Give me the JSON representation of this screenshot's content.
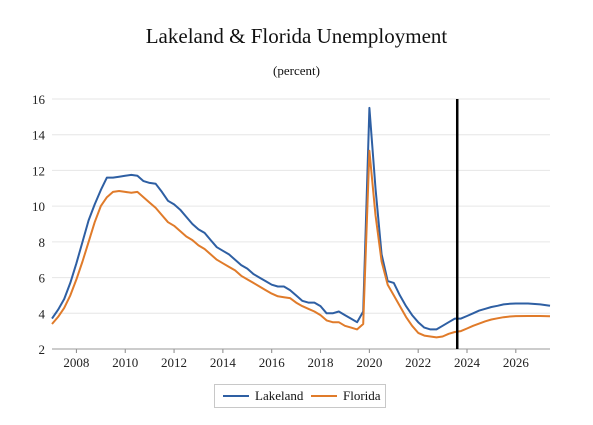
{
  "chart_data": {
    "type": "line",
    "title": "Lakeland & Florida Unemployment",
    "subtitle": "(percent)",
    "xlabel": "",
    "ylabel": "",
    "xlim": [
      2007.0,
      2027.4
    ],
    "ylim": [
      2,
      16
    ],
    "x_ticks": [
      "2008",
      "2010",
      "2012",
      "2014",
      "2016",
      "2018",
      "2020",
      "2022",
      "2024",
      "2026"
    ],
    "y_ticks": [
      "2",
      "4",
      "6",
      "8",
      "10",
      "12",
      "14",
      "16"
    ],
    "grid": "horizontal",
    "legend": "bottom",
    "vertical_marker_x": 2023.6,
    "series": [
      {
        "name": "Lakeland",
        "color": "#2e5fa3",
        "points": [
          [
            2007.0,
            3.7
          ],
          [
            2007.25,
            4.2
          ],
          [
            2007.5,
            4.8
          ],
          [
            2007.75,
            5.7
          ],
          [
            2008.0,
            6.8
          ],
          [
            2008.25,
            8.0
          ],
          [
            2008.5,
            9.2
          ],
          [
            2008.75,
            10.1
          ],
          [
            2009.0,
            10.9
          ],
          [
            2009.25,
            11.6
          ],
          [
            2009.5,
            11.6
          ],
          [
            2009.75,
            11.65
          ],
          [
            2010.0,
            11.7
          ],
          [
            2010.25,
            11.75
          ],
          [
            2010.5,
            11.7
          ],
          [
            2010.75,
            11.4
          ],
          [
            2011.0,
            11.3
          ],
          [
            2011.25,
            11.25
          ],
          [
            2011.5,
            10.8
          ],
          [
            2011.75,
            10.3
          ],
          [
            2012.0,
            10.1
          ],
          [
            2012.25,
            9.8
          ],
          [
            2012.5,
            9.4
          ],
          [
            2012.75,
            9.0
          ],
          [
            2013.0,
            8.7
          ],
          [
            2013.25,
            8.5
          ],
          [
            2013.5,
            8.1
          ],
          [
            2013.75,
            7.7
          ],
          [
            2014.0,
            7.5
          ],
          [
            2014.25,
            7.3
          ],
          [
            2014.5,
            7.0
          ],
          [
            2014.75,
            6.7
          ],
          [
            2015.0,
            6.5
          ],
          [
            2015.25,
            6.2
          ],
          [
            2015.5,
            6.0
          ],
          [
            2015.75,
            5.8
          ],
          [
            2016.0,
            5.6
          ],
          [
            2016.25,
            5.5
          ],
          [
            2016.5,
            5.5
          ],
          [
            2016.75,
            5.3
          ],
          [
            2017.0,
            5.0
          ],
          [
            2017.25,
            4.7
          ],
          [
            2017.5,
            4.6
          ],
          [
            2017.75,
            4.6
          ],
          [
            2018.0,
            4.4
          ],
          [
            2018.25,
            4.0
          ],
          [
            2018.5,
            4.0
          ],
          [
            2018.75,
            4.1
          ],
          [
            2019.0,
            3.9
          ],
          [
            2019.25,
            3.7
          ],
          [
            2019.5,
            3.5
          ],
          [
            2019.75,
            4.1
          ],
          [
            2020.0,
            15.5
          ],
          [
            2020.25,
            11.0
          ],
          [
            2020.5,
            7.3
          ],
          [
            2020.75,
            5.8
          ],
          [
            2021.0,
            5.7
          ],
          [
            2021.25,
            5.0
          ],
          [
            2021.5,
            4.4
          ],
          [
            2021.75,
            3.9
          ],
          [
            2022.0,
            3.5
          ],
          [
            2022.25,
            3.2
          ],
          [
            2022.5,
            3.1
          ],
          [
            2022.75,
            3.1
          ],
          [
            2023.0,
            3.3
          ],
          [
            2023.25,
            3.5
          ],
          [
            2023.5,
            3.7
          ],
          [
            2023.75,
            3.7
          ],
          [
            2024.0,
            3.85
          ],
          [
            2024.25,
            4.0
          ],
          [
            2024.5,
            4.15
          ],
          [
            2024.75,
            4.25
          ],
          [
            2025.0,
            4.35
          ],
          [
            2025.25,
            4.42
          ],
          [
            2025.5,
            4.5
          ],
          [
            2025.75,
            4.53
          ],
          [
            2026.0,
            4.55
          ],
          [
            2026.5,
            4.55
          ],
          [
            2027.0,
            4.5
          ],
          [
            2027.4,
            4.42
          ]
        ]
      },
      {
        "name": "Florida",
        "color": "#e07b2a",
        "points": [
          [
            2007.0,
            3.4
          ],
          [
            2007.25,
            3.8
          ],
          [
            2007.5,
            4.3
          ],
          [
            2007.75,
            5.0
          ],
          [
            2008.0,
            5.9
          ],
          [
            2008.25,
            6.9
          ],
          [
            2008.5,
            8.0
          ],
          [
            2008.75,
            9.1
          ],
          [
            2009.0,
            10.0
          ],
          [
            2009.25,
            10.5
          ],
          [
            2009.5,
            10.8
          ],
          [
            2009.75,
            10.85
          ],
          [
            2010.0,
            10.8
          ],
          [
            2010.25,
            10.75
          ],
          [
            2010.5,
            10.8
          ],
          [
            2010.75,
            10.5
          ],
          [
            2011.0,
            10.2
          ],
          [
            2011.25,
            9.9
          ],
          [
            2011.5,
            9.5
          ],
          [
            2011.75,
            9.1
          ],
          [
            2012.0,
            8.9
          ],
          [
            2012.25,
            8.6
          ],
          [
            2012.5,
            8.3
          ],
          [
            2012.75,
            8.1
          ],
          [
            2013.0,
            7.8
          ],
          [
            2013.25,
            7.6
          ],
          [
            2013.5,
            7.3
          ],
          [
            2013.75,
            7.0
          ],
          [
            2014.0,
            6.8
          ],
          [
            2014.25,
            6.6
          ],
          [
            2014.5,
            6.4
          ],
          [
            2014.75,
            6.1
          ],
          [
            2015.0,
            5.9
          ],
          [
            2015.25,
            5.7
          ],
          [
            2015.5,
            5.5
          ],
          [
            2015.75,
            5.3
          ],
          [
            2016.0,
            5.1
          ],
          [
            2016.25,
            4.95
          ],
          [
            2016.5,
            4.9
          ],
          [
            2016.75,
            4.85
          ],
          [
            2017.0,
            4.6
          ],
          [
            2017.25,
            4.4
          ],
          [
            2017.5,
            4.25
          ],
          [
            2017.75,
            4.1
          ],
          [
            2018.0,
            3.9
          ],
          [
            2018.25,
            3.6
          ],
          [
            2018.5,
            3.5
          ],
          [
            2018.75,
            3.5
          ],
          [
            2019.0,
            3.3
          ],
          [
            2019.25,
            3.2
          ],
          [
            2019.5,
            3.1
          ],
          [
            2019.75,
            3.4
          ],
          [
            2020.0,
            13.1
          ],
          [
            2020.25,
            9.5
          ],
          [
            2020.5,
            6.9
          ],
          [
            2020.75,
            5.6
          ],
          [
            2021.0,
            5.0
          ],
          [
            2021.25,
            4.4
          ],
          [
            2021.5,
            3.8
          ],
          [
            2021.75,
            3.3
          ],
          [
            2022.0,
            2.9
          ],
          [
            2022.25,
            2.75
          ],
          [
            2022.5,
            2.7
          ],
          [
            2022.75,
            2.65
          ],
          [
            2023.0,
            2.7
          ],
          [
            2023.25,
            2.85
          ],
          [
            2023.5,
            2.95
          ],
          [
            2023.75,
            3.0
          ],
          [
            2024.0,
            3.15
          ],
          [
            2024.25,
            3.3
          ],
          [
            2024.5,
            3.42
          ],
          [
            2024.75,
            3.55
          ],
          [
            2025.0,
            3.65
          ],
          [
            2025.25,
            3.72
          ],
          [
            2025.5,
            3.78
          ],
          [
            2025.75,
            3.82
          ],
          [
            2026.0,
            3.84
          ],
          [
            2026.5,
            3.85
          ],
          [
            2027.0,
            3.85
          ],
          [
            2027.4,
            3.83
          ]
        ]
      }
    ]
  }
}
